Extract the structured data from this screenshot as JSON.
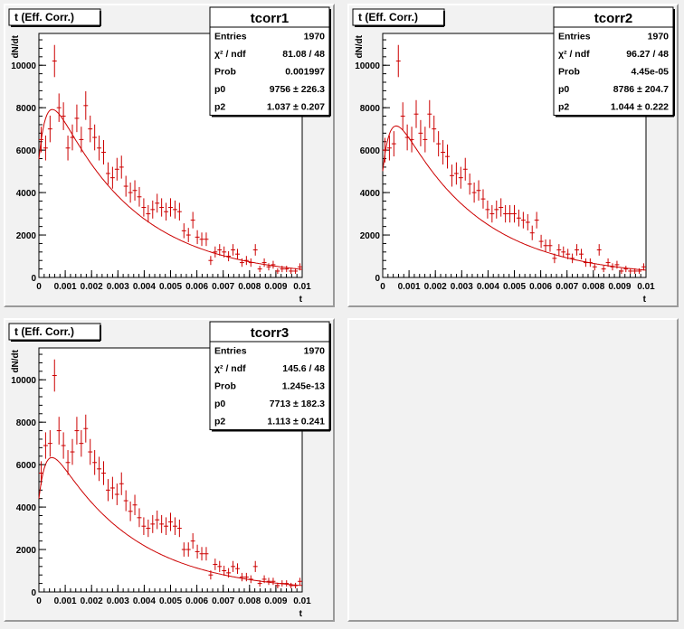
{
  "pads": [
    {
      "title": "t (Eff. Corr.)",
      "stats": {
        "name": "tcorr1",
        "rows": [
          [
            "Entries",
            "1970"
          ],
          [
            "χ² / ndf",
            "81.08 / 48"
          ],
          [
            "Prob",
            "0.001997"
          ],
          [
            "p0",
            "9756 ± 226.3"
          ],
          [
            "p2",
            "1.037 ± 0.207"
          ]
        ]
      },
      "chart_data": {
        "type": "scatter",
        "xlabel": "t",
        "ylabel": "dN/dt",
        "xlim": [
          0,
          0.01
        ],
        "ylim": [
          0,
          11500
        ],
        "x_ticks": [
          "0",
          "0.001",
          "0.002",
          "0.003",
          "0.004",
          "0.005",
          "0.006",
          "0.007",
          "0.008",
          "0.009",
          "0.01"
        ],
        "y_ticks": [
          "0",
          "2000",
          "4000",
          "6000",
          "8000",
          "10000"
        ],
        "series": [
          {
            "values": [
              6500,
              6100,
              7000,
              10200,
              8000,
              7600,
              6100,
              6600,
              7500,
              6500,
              8100,
              7000,
              6600,
              6100,
              5900,
              4900,
              4700,
              5100,
              5200,
              4300,
              4000,
              4100,
              3800,
              3300,
              3000,
              3200,
              3500,
              3300,
              3100,
              3300,
              3200,
              3100,
              2200,
              2000,
              2700,
              1900,
              1800,
              1800,
              800,
              1200,
              1300,
              1200,
              1000,
              1300,
              1100,
              700,
              800,
              700,
              1300,
              400,
              700,
              500,
              600,
              300,
              400,
              400,
              300,
              300,
              500
            ]
          }
        ],
        "fit_amplitude": 9756,
        "fit_p2": 1.037
      }
    },
    {
      "title": "t (Eff. Corr.)",
      "stats": {
        "name": "tcorr2",
        "rows": [
          [
            "Entries",
            "1970"
          ],
          [
            "χ² / ndf",
            "96.27 / 48"
          ],
          [
            "Prob",
            "4.45e-05"
          ],
          [
            "p0",
            "8786 ± 204.7"
          ],
          [
            "p2",
            "1.044 ± 0.222"
          ]
        ]
      },
      "chart_data": {
        "type": "scatter",
        "xlabel": "t",
        "ylabel": "dN/dt",
        "xlim": [
          0,
          0.01
        ],
        "ylim": [
          0,
          11500
        ],
        "x_ticks": [
          "0",
          "0.001",
          "0.002",
          "0.003",
          "0.004",
          "0.005",
          "0.006",
          "0.007",
          "0.008",
          "0.009",
          "0.01"
        ],
        "y_ticks": [
          "0",
          "2000",
          "4000",
          "6000",
          "8000",
          "10000"
        ],
        "series": [
          {
            "values": [
              6000,
              6100,
              6300,
              10200,
              7600,
              6600,
              6500,
              7700,
              6800,
              6500,
              7700,
              7000,
              6300,
              5900,
              5700,
              4800,
              4900,
              4700,
              5100,
              4400,
              4000,
              4100,
              3700,
              3200,
              3000,
              3200,
              3300,
              3000,
              3000,
              3000,
              2800,
              2700,
              2600,
              2100,
              2700,
              1700,
              1500,
              1500,
              900,
              1300,
              1200,
              1100,
              900,
              1300,
              1100,
              700,
              700,
              500,
              1300,
              400,
              700,
              500,
              600,
              300,
              400,
              300,
              300,
              300,
              500
            ]
          }
        ],
        "fit_amplitude": 8786,
        "fit_p2": 1.044
      }
    },
    {
      "title": "t (Eff. Corr.)",
      "stats": {
        "name": "tcorr3",
        "rows": [
          [
            "Entries",
            "1970"
          ],
          [
            "χ² / ndf",
            "145.6 / 48"
          ],
          [
            "Prob",
            "1.245e-13"
          ],
          [
            "p0",
            "7713 ± 182.3"
          ],
          [
            "p2",
            "1.113 ± 0.241"
          ]
        ]
      },
      "chart_data": {
        "type": "scatter",
        "xlabel": "t",
        "ylabel": "dN/dt",
        "xlim": [
          0,
          0.01
        ],
        "ylim": [
          0,
          11500
        ],
        "x_ticks": [
          "0",
          "0.001",
          "0.002",
          "0.003",
          "0.004",
          "0.005",
          "0.006",
          "0.007",
          "0.008",
          "0.009",
          "0.01"
        ],
        "y_ticks": [
          "0",
          "2000",
          "4000",
          "6000",
          "8000",
          "10000"
        ],
        "series": [
          {
            "values": [
              5600,
              6900,
              7000,
              10200,
              7600,
              6900,
              6100,
              6600,
              7600,
              7000,
              7700,
              6600,
              6100,
              5800,
              5600,
              4800,
              4900,
              4600,
              5100,
              4300,
              3800,
              4100,
              3500,
              3100,
              3000,
              3200,
              3400,
              3200,
              3100,
              3300,
              3100,
              3000,
              2000,
              2000,
              2400,
              1900,
              1800,
              1800,
              800,
              1300,
              1200,
              1000,
              900,
              1200,
              1100,
              700,
              700,
              600,
              1200,
              400,
              600,
              500,
              500,
              300,
              400,
              400,
              300,
              300,
              500
            ]
          }
        ],
        "fit_amplitude": 7713,
        "fit_p2": 1.113
      }
    }
  ],
  "colors": {
    "data": "#cc0000",
    "fit": "#cc0000",
    "frame": "#000000"
  }
}
